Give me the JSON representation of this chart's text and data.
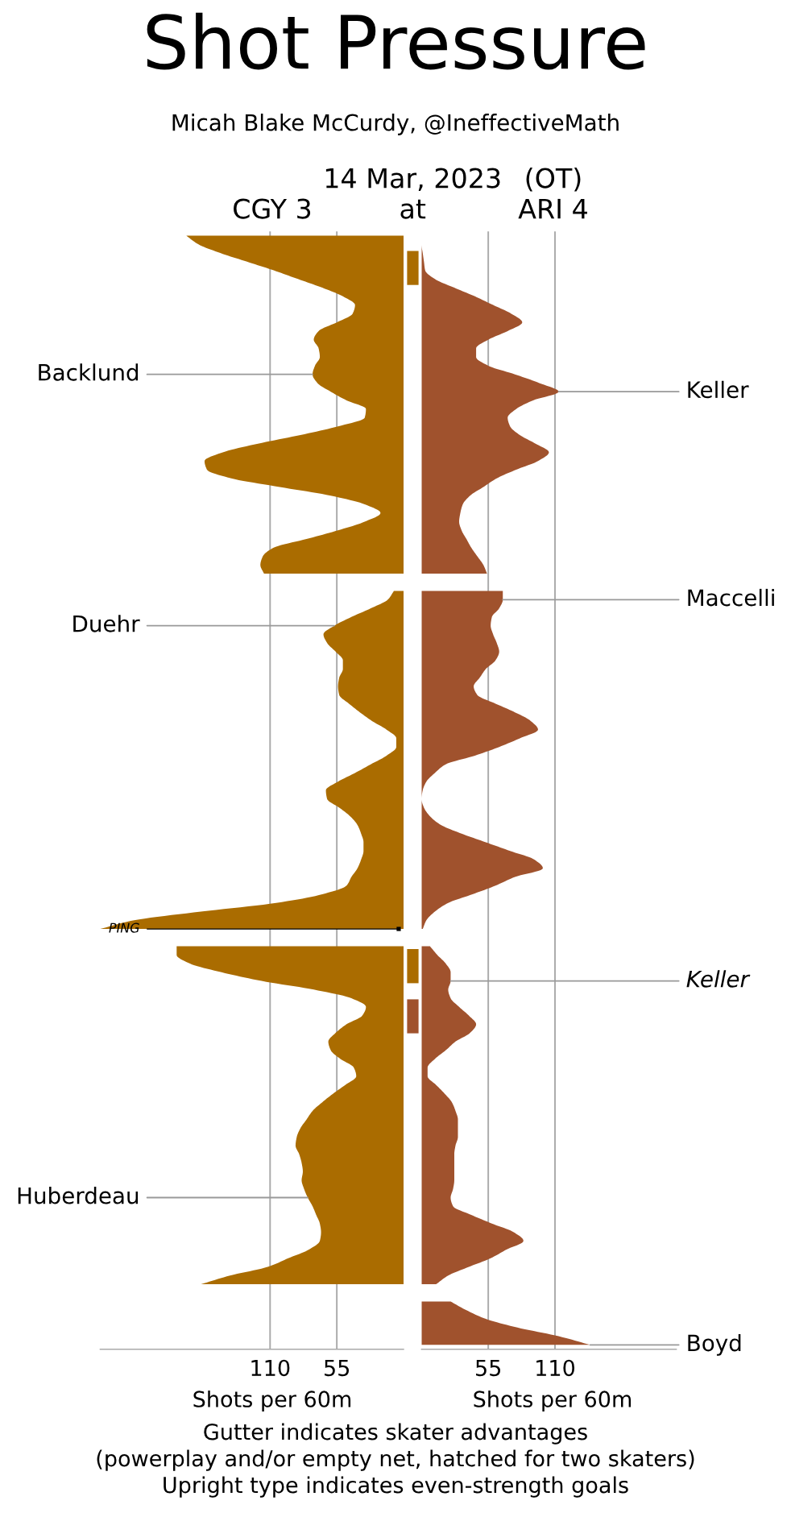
{
  "chart_data": [
    {
      "type": "area",
      "orientation": "horizontal",
      "title": "Shot Pressure",
      "subtitle": "Micah Blake McCurdy, @IneffectiveMath",
      "xlabel": "Shots per 60m",
      "categories": [
        null,
        null,
        null,
        null,
        null,
        null,
        null,
        null,
        null,
        null,
        null,
        null,
        null,
        null,
        null,
        null,
        null,
        null,
        null,
        null,
        null,
        null,
        null,
        null,
        null,
        null,
        null,
        null,
        null,
        null,
        null,
        null,
        null,
        null,
        null,
        null,
        null,
        null,
        null,
        null,
        null,
        null,
        null,
        null,
        null,
        null,
        null,
        null,
        null,
        null,
        null,
        null,
        null,
        null,
        null,
        null,
        null,
        null,
        null,
        null,
        null,
        null,
        null,
        null,
        null,
        null,
        null,
        null,
        null,
        null,
        null,
        null,
        null,
        null,
        null,
        null,
        null,
        null,
        null,
        null,
        null,
        null,
        null,
        null,
        null,
        null,
        null,
        null,
        null,
        null,
        null,
        null,
        null,
        null,
        null,
        null,
        null,
        null,
        null,
        null,
        null,
        null,
        null,
        null,
        null,
        null,
        null,
        null,
        null,
        null,
        null,
        null,
        null,
        null,
        null,
        null,
        null,
        null,
        null,
        null,
        null,
        null,
        null,
        null,
        null,
        null,
        null,
        null,
        null
      ],
      "series": [
        {
          "name": "CGY 3",
          "color": "#aa6c00",
          "values": [
            179,
            169,
            151,
            129,
            107,
            87,
            67,
            50,
            40,
            42,
            55,
            70,
            74,
            70,
            69,
            73,
            75,
            71,
            60,
            47,
            31,
            32,
            54,
            85,
            120,
            149,
            164,
            162,
            142,
            102,
            60,
            32,
            19,
            32,
            54,
            80,
            107,
            116,
            118,
            115,
            null,
            8,
            13,
            27,
            43,
            57,
            66,
            63,
            56,
            50,
            50,
            53,
            54,
            53,
            45,
            36,
            26,
            14,
            6,
            6,
            14,
            27,
            40,
            54,
            64,
            63,
            53,
            44,
            38,
            35,
            33,
            33,
            35,
            38,
            43,
            47,
            67,
            105,
            167,
            222,
            250,
            null,
            187,
            187,
            176,
            150,
            117,
            74,
            43,
            31,
            34,
            47,
            56,
            62,
            60,
            52,
            41,
            39,
            48,
            58,
            67,
            75,
            80,
            85,
            88,
            89,
            86,
            84,
            83,
            84,
            82,
            79,
            75,
            72,
            69,
            68,
            69,
            78,
            95,
            112,
            143,
            167,
            null,
            null,
            null,
            null,
            null,
            null,
            null
          ],
          "value_labels": [
            null,
            null,
            null,
            null,
            null,
            null,
            null,
            null,
            null,
            null,
            null,
            null,
            null,
            null,
            null,
            null,
            "Backlund",
            null,
            null,
            null,
            null,
            null,
            null,
            null,
            null,
            null,
            null,
            null,
            null,
            null,
            null,
            null,
            null,
            null,
            null,
            null,
            null,
            null,
            null,
            null,
            null,
            null,
            null,
            null,
            null,
            "Duehr",
            null,
            null,
            null,
            null,
            null,
            null,
            null,
            null,
            null,
            null,
            null,
            null,
            null,
            null,
            null,
            null,
            null,
            null,
            null,
            null,
            null,
            null,
            null,
            null,
            null,
            null,
            null,
            null,
            null,
            null,
            null,
            null,
            null,
            null,
            null,
            null,
            null,
            null,
            null,
            null,
            null,
            null,
            null,
            null,
            null,
            null,
            null,
            null,
            null,
            null,
            null,
            null,
            null,
            null,
            null,
            null,
            null,
            null,
            null,
            null,
            null,
            null,
            null,
            null,
            null,
            "Huberdeau",
            null,
            null,
            null,
            null,
            null,
            null,
            null,
            null,
            null,
            null,
            null,
            null,
            null,
            null,
            null,
            null,
            null
          ]
        },
        {
          "type": "scatter",
          "color": "#000000",
          "marker": "square",
          "values": [
            null,
            null,
            null,
            null,
            null,
            null,
            null,
            null,
            null,
            null,
            null,
            null,
            null,
            null,
            null,
            null,
            null,
            null,
            null,
            null,
            null,
            null,
            null,
            null,
            null,
            null,
            null,
            null,
            null,
            null,
            null,
            null,
            null,
            null,
            null,
            null,
            null,
            null,
            null,
            null,
            null,
            null,
            null,
            null,
            null,
            null,
            null,
            null,
            null,
            null,
            null,
            null,
            null,
            null,
            null,
            null,
            null,
            null,
            null,
            null,
            null,
            null,
            null,
            null,
            null,
            null,
            null,
            null,
            null,
            null,
            null,
            null,
            null,
            null,
            null,
            null,
            null,
            null,
            null,
            null,
            4,
            null,
            null,
            null,
            null,
            null,
            null,
            null,
            null,
            null,
            null,
            null,
            null,
            null,
            null,
            null,
            null,
            null,
            null,
            null,
            null,
            null,
            null,
            null,
            null,
            null,
            null,
            null,
            null,
            null,
            null,
            null,
            null,
            null,
            null,
            null,
            null,
            null,
            null,
            null,
            null,
            null,
            null,
            null,
            null,
            null,
            null,
            null,
            null
          ],
          "value_labels": [
            null,
            null,
            null,
            null,
            null,
            null,
            null,
            null,
            null,
            null,
            null,
            null,
            null,
            null,
            null,
            null,
            null,
            null,
            null,
            null,
            null,
            null,
            null,
            null,
            null,
            null,
            null,
            null,
            null,
            null,
            null,
            null,
            null,
            null,
            null,
            null,
            null,
            null,
            null,
            null,
            null,
            null,
            null,
            null,
            null,
            null,
            null,
            null,
            null,
            null,
            null,
            null,
            null,
            null,
            null,
            null,
            null,
            null,
            null,
            null,
            null,
            null,
            null,
            null,
            null,
            null,
            null,
            null,
            null,
            null,
            null,
            null,
            null,
            null,
            null,
            null,
            null,
            null,
            null,
            null,
            "PING",
            null,
            null,
            null,
            null,
            null,
            null,
            null,
            null,
            null,
            null,
            null,
            null,
            null,
            null,
            null,
            null,
            null,
            null,
            null,
            null,
            null,
            null,
            null,
            null,
            null,
            null,
            null,
            null,
            null,
            null,
            null,
            null,
            null,
            null,
            null,
            null,
            null,
            null,
            null,
            null,
            null,
            null,
            null,
            null,
            null,
            null,
            null,
            null
          ]
        }
      ],
      "xlim": [
        250,
        0
      ],
      "xticks": [
        110,
        55
      ],
      "tick_labels": "x",
      "grid": "x",
      "annotations": [
        "Gutter indicates skater advantages",
        "(powerplay and/or empty net, hatched for two skaters)",
        "Upright type indicates even-strength goals"
      ]
    },
    {
      "type": "other",
      "title": "14 Mar, 2023",
      "subtitle": "at"
    },
    {
      "type": "area",
      "orientation": "horizontal",
      "title": "(OT)",
      "xlabel": "Shots per 60m",
      "categories": [
        null,
        null,
        null,
        null,
        null,
        null,
        null,
        null,
        null,
        null,
        null,
        null,
        null,
        null,
        null,
        null,
        null,
        null,
        null,
        null,
        null,
        null,
        null,
        null,
        null,
        null,
        null,
        null,
        null,
        null,
        null,
        null,
        null,
        null,
        null,
        null,
        null,
        null,
        null,
        null,
        null,
        null,
        null,
        null,
        null,
        null,
        null,
        null,
        null,
        null,
        null,
        null,
        null,
        null,
        null,
        null,
        null,
        null,
        null,
        null,
        null,
        null,
        null,
        null,
        null,
        null,
        null,
        null,
        null,
        null,
        null,
        null,
        null,
        null,
        null,
        null,
        null,
        null,
        null,
        null,
        null,
        null,
        null,
        null,
        null,
        null,
        null,
        null,
        null,
        null,
        null,
        null,
        null,
        null,
        null,
        null,
        null,
        null,
        null,
        null,
        null,
        null,
        null,
        null,
        null,
        null,
        null,
        null,
        null,
        null,
        null,
        null,
        null,
        null,
        null,
        null,
        null,
        null,
        null,
        null,
        null,
        null,
        null,
        null,
        null,
        null,
        null,
        null,
        null
      ],
      "series": [
        {
          "name": "ARI 4",
          "color": "#a0522d",
          "values": [
            0,
            0,
            1,
            2,
            3,
            11,
            27,
            44,
            59,
            74,
            83,
            71,
            55,
            45,
            45,
            55,
            77,
            97,
            113,
            92,
            78,
            71,
            73,
            81,
            94,
            105,
            96,
            78,
            62,
            51,
            40,
            34,
            32,
            31,
            33,
            37,
            41,
            46,
            51,
            54,
            null,
            67,
            67,
            64,
            58,
            57,
            59,
            62,
            64,
            61,
            53,
            48,
            43,
            46,
            61,
            77,
            90,
            96,
            81,
            64,
            44,
            20,
            11,
            4,
            1,
            0,
            2,
            7,
            16,
            33,
            53,
            73,
            93,
            100,
            77,
            61,
            42,
            22,
            11,
            4,
            1,
            null,
            7,
            13,
            20,
            24,
            24,
            22,
            24,
            31,
            39,
            45,
            40,
            28,
            20,
            11,
            5,
            5,
            12,
            19,
            25,
            28,
            30,
            30,
            30,
            28,
            27,
            27,
            27,
            27,
            26,
            24,
            26,
            41,
            58,
            76,
            84,
            70,
            57,
            39,
            22,
            12,
            null,
            24,
            37,
            53,
            79,
            113,
            139
          ],
          "value_labels": [
            null,
            null,
            null,
            null,
            null,
            null,
            null,
            null,
            null,
            null,
            null,
            null,
            null,
            null,
            null,
            null,
            null,
            null,
            "Keller",
            null,
            null,
            null,
            null,
            null,
            null,
            null,
            null,
            null,
            null,
            null,
            null,
            null,
            null,
            null,
            null,
            null,
            null,
            null,
            null,
            null,
            null,
            null,
            "Maccelli",
            null,
            null,
            null,
            null,
            null,
            null,
            null,
            null,
            null,
            null,
            null,
            null,
            null,
            null,
            null,
            null,
            null,
            null,
            null,
            null,
            null,
            null,
            null,
            null,
            null,
            null,
            null,
            null,
            null,
            null,
            null,
            null,
            null,
            null,
            null,
            null,
            null,
            null,
            null,
            null,
            null,
            null,
            null,
            "Keller",
            null,
            null,
            null,
            null,
            null,
            null,
            null,
            null,
            null,
            null,
            null,
            null,
            null,
            null,
            null,
            null,
            null,
            null,
            null,
            null,
            null,
            null,
            null,
            null,
            null,
            null,
            null,
            null,
            null,
            null,
            null,
            null,
            null,
            null,
            null,
            null,
            null,
            null,
            null,
            null,
            null,
            "Boyd"
          ]
        }
      ],
      "xlim": [
        0,
        210
      ],
      "xticks": [
        55,
        110
      ],
      "tick_labels": "x",
      "grid": "x"
    }
  ]
}
